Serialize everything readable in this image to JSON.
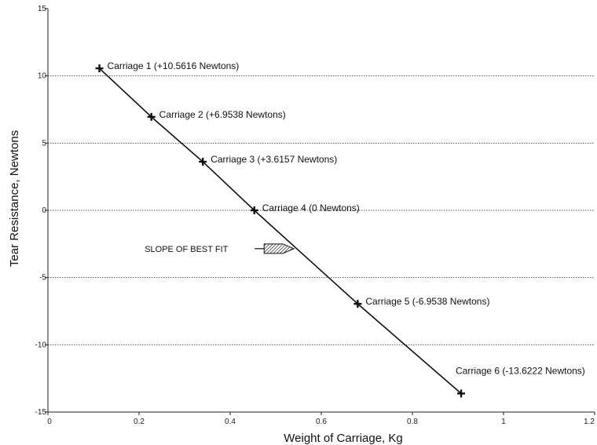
{
  "chart_data": {
    "type": "line",
    "xlabel": "Weight of Carriage, Kg",
    "ylabel": "Tear Resistance, Newtons",
    "xlim": [
      0,
      1.2
    ],
    "ylim": [
      -15,
      15
    ],
    "xticks": [
      0,
      0.2,
      0.4,
      0.6,
      0.8,
      1,
      1.2
    ],
    "xtick_labels": [
      "0",
      "0.2",
      "0.4",
      "0.6",
      "0.8",
      "1",
      "1.2"
    ],
    "yticks": [
      15,
      10,
      5,
      0,
      -5,
      -10,
      -15
    ],
    "ytick_labels": [
      "15",
      "10",
      "5",
      "0",
      "-5",
      "-10",
      "-15"
    ],
    "grid": "horizontal dotted",
    "series": [
      {
        "points": [
          {
            "x": 0.113,
            "y": 10.5616,
            "label": "Carriage 1 (+10.5616 Newtons)"
          },
          {
            "x": 0.227,
            "y": 6.9538,
            "label": "Carriage 2 (+6.9538 Newtons)"
          },
          {
            "x": 0.34,
            "y": 3.6157,
            "label": "Carriage 3 (+3.6157 Newtons)"
          },
          {
            "x": 0.453,
            "y": 0,
            "label": "Carriage 4 (0 Newtons)"
          },
          {
            "x": 0.68,
            "y": -6.9538,
            "label": "Carriage 5 (-6.9538 Newtons)"
          },
          {
            "x": 0.907,
            "y": -13.6222,
            "label": "Carriage 6 (-13.6222 Newtons)"
          }
        ]
      }
    ],
    "annotation": {
      "text": "SLOPE OF BEST FIT",
      "target_x": 0.54,
      "target_y": -2.85
    }
  },
  "colors": {
    "line": "#111111",
    "grid": "#555555",
    "background": "#ffffff"
  }
}
